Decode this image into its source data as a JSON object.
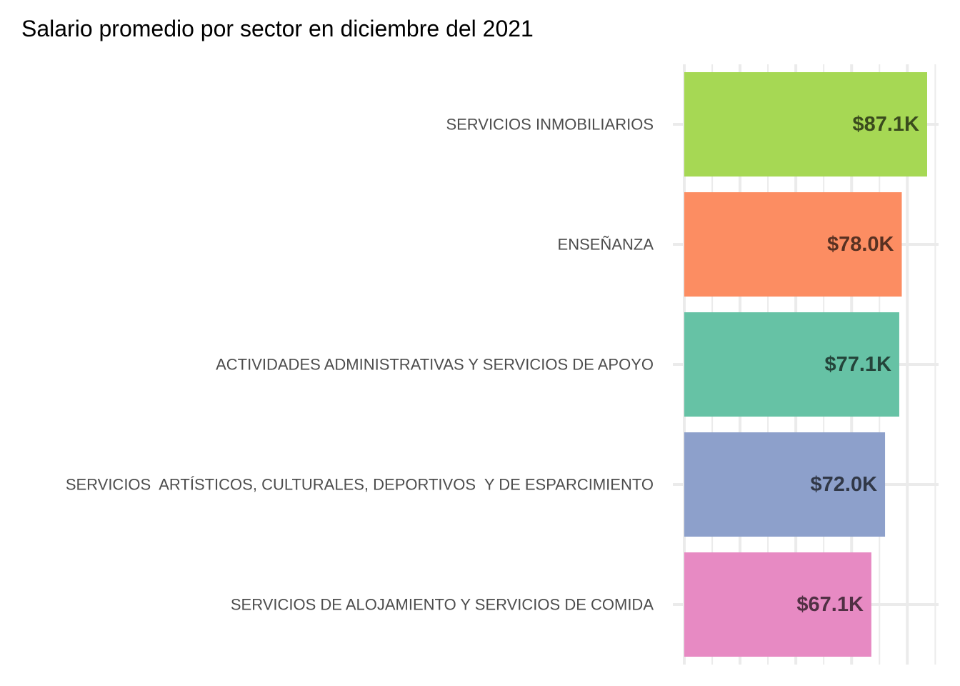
{
  "chart_data": {
    "type": "bar",
    "orientation": "horizontal",
    "title": "Salario promedio por sector en diciembre del 2021",
    "xlabel": "",
    "ylabel": "",
    "categories": [
      "SERVICIOS INMOBILIARIOS",
      "ENSEÑANZA",
      "ACTIVIDADES ADMINISTRATIVAS Y SERVICIOS DE APOYO",
      "SERVICIOS  ARTÍSTICOS, CULTURALES, DEPORTIVOS  Y DE ESPARCIMIENTO",
      "SERVICIOS DE ALOJAMIENTO Y SERVICIOS DE COMIDA"
    ],
    "values": [
      87.1,
      78.0,
      77.1,
      72.0,
      67.1
    ],
    "value_labels": [
      "$87.1K",
      "$78.0K",
      "$77.1K",
      "$72.0K",
      "$67.1K"
    ],
    "colors": [
      "#a6d854",
      "#fc8d62",
      "#66c2a5",
      "#8da0cb",
      "#e78ac3"
    ],
    "label_colors": [
      "#3a4b1d",
      "#583122",
      "#24443a",
      "#313847",
      "#513044"
    ],
    "xlim": [
      0,
      91.2
    ],
    "grid": true,
    "legend": "none"
  }
}
